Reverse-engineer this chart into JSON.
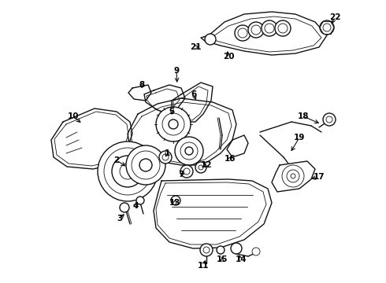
{
  "background_color": "#ffffff",
  "line_color": "#111111",
  "label_color": "#000000",
  "fig_width": 4.9,
  "fig_height": 3.6,
  "dpi": 100
}
